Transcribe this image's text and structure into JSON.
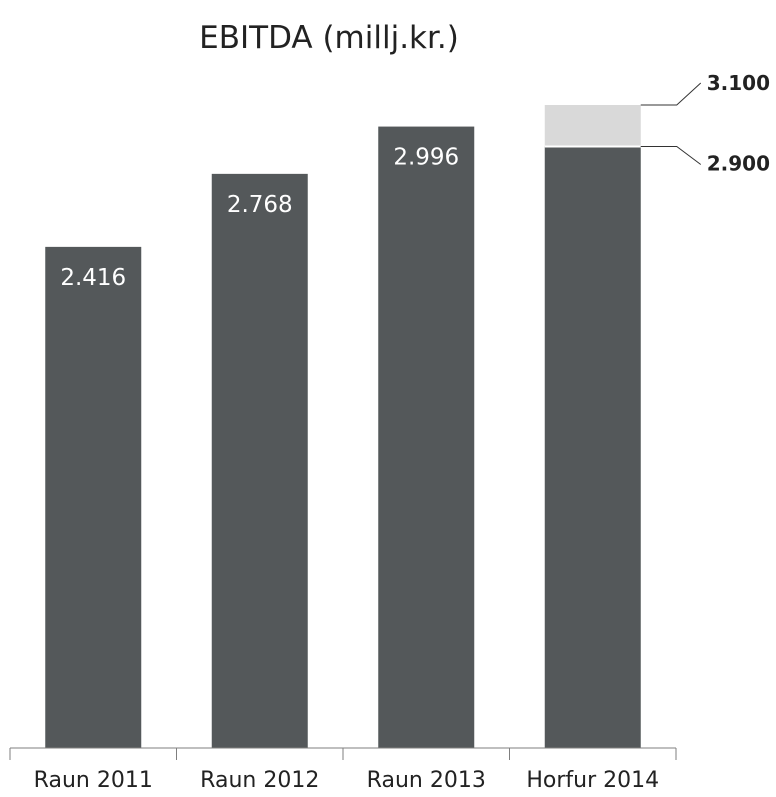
{
  "chart_data": {
    "type": "bar",
    "title": "EBITDA (millj.kr.)",
    "categories": [
      "Raun 2011",
      "Raun 2012",
      "Raun 2013",
      "Horfur 2014"
    ],
    "values": [
      2416,
      2768,
      2996,
      2900
    ],
    "value_labels": [
      "2.416",
      "2.768",
      "2.996",
      ""
    ],
    "forecast_range": {
      "category": "Horfur 2014",
      "low": 2900,
      "high": 3100,
      "low_label": "2.900",
      "high_label": "3.100"
    },
    "ylim": [
      0,
      3100
    ],
    "grid": false,
    "legend": "none",
    "colors": {
      "bar": "#54585a",
      "range": "#d9d9d9",
      "axis": "#7f7f7f"
    }
  }
}
